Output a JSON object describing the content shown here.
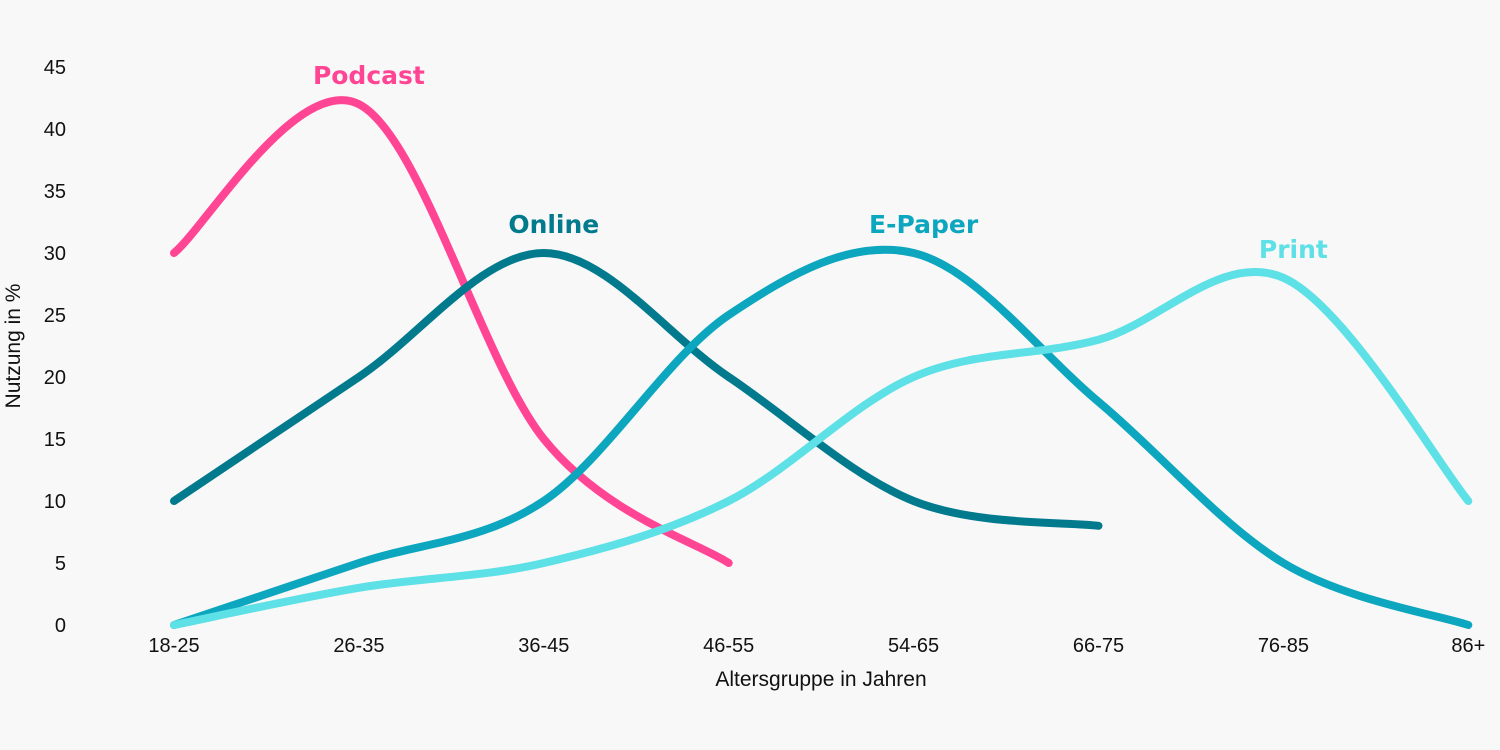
{
  "chart_data": {
    "type": "line",
    "title": "",
    "xlabel": "Altersgruppe in Jahren",
    "ylabel": "Nutzung in %",
    "categories": [
      "18-25",
      "26-35",
      "36-45",
      "46-55",
      "54-65",
      "66-75",
      "76-85",
      "86+"
    ],
    "ylim": [
      0,
      45
    ],
    "yticks": [
      0,
      5,
      10,
      15,
      20,
      25,
      30,
      35,
      40,
      45
    ],
    "grid": false,
    "legend": "inline labels",
    "series": [
      {
        "name": "Podcast",
        "color": "#ff4593",
        "values": [
          30,
          42,
          15,
          5,
          null,
          null,
          null,
          null
        ]
      },
      {
        "name": "Online",
        "color": "#017a8e",
        "values": [
          10,
          20,
          30,
          20,
          10,
          8,
          null,
          null
        ]
      },
      {
        "name": "E-Paper",
        "color": "#0ca6bf",
        "values": [
          0,
          5,
          10,
          25,
          30,
          18,
          5,
          0
        ]
      },
      {
        "name": "Print",
        "color": "#5de0e6",
        "values": [
          0,
          3,
          5,
          10,
          20,
          23,
          28,
          10
        ]
      }
    ]
  }
}
